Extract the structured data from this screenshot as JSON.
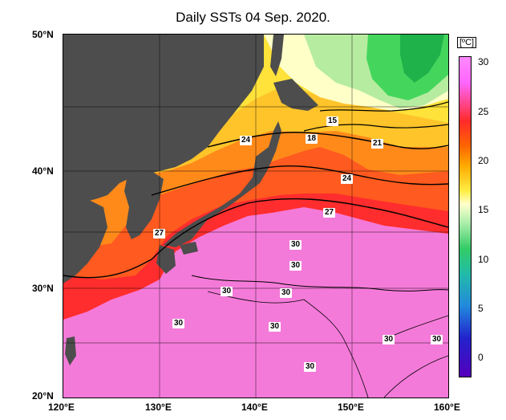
{
  "title": "Daily SSTs 04 Sep. 2020.",
  "lat_labels": [
    "50°N",
    "40°N",
    "30°N",
    "20°N"
  ],
  "lon_labels": [
    "120°E",
    "130°E",
    "140°E",
    "150°E",
    "160°E"
  ],
  "colorbar": {
    "unit": "[ºC]",
    "ticks": [
      "30",
      "25",
      "20",
      "15",
      "10",
      "5",
      "0"
    ]
  },
  "contour_labels": [
    "24",
    "15",
    "18",
    "21",
    "24",
    "27",
    "27",
    "30",
    "30",
    "30",
    "30",
    "30",
    "30",
    "30",
    "30",
    "30"
  ],
  "colors": {
    "land": "#4d4d4d",
    "warm_pink": "#f47ad9",
    "red": "#ff2d2d",
    "orange": "#ff8a1a",
    "yellow": "#ffe23a",
    "pale": "#ffffc8",
    "green": "#44d65c"
  }
}
